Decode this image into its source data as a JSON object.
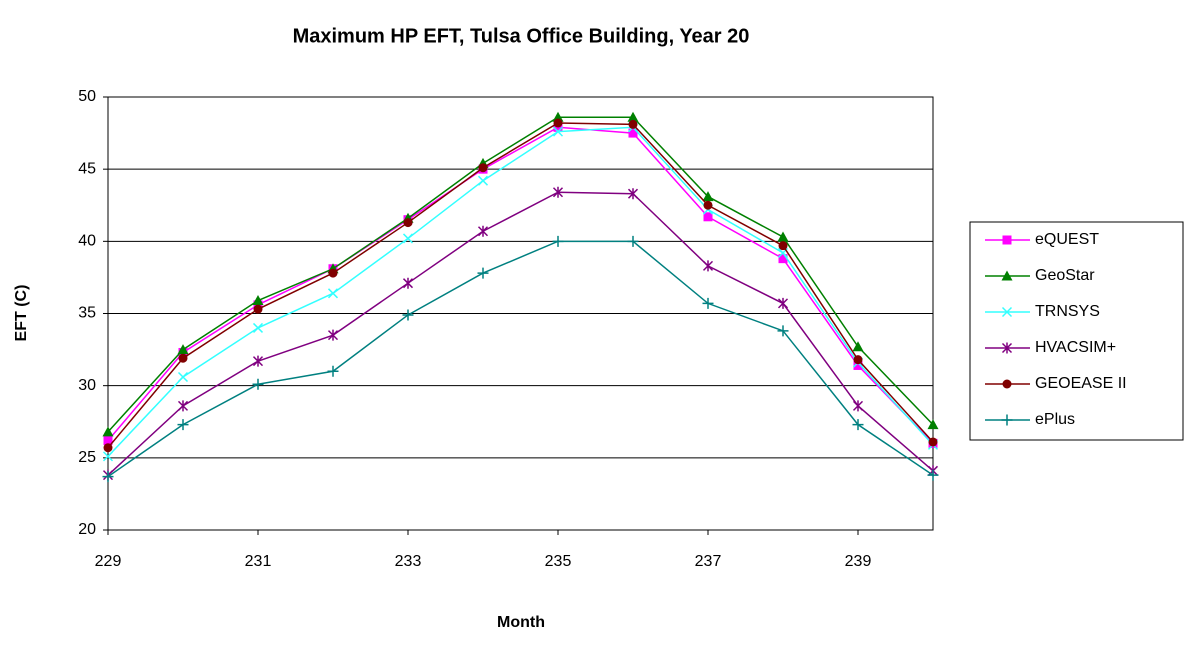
{
  "chart_data": {
    "type": "line",
    "title": "Maximum HP EFT, Tulsa Office Building, Year 20",
    "x_label": "Month",
    "y_label": "EFT (C)",
    "x": [
      229,
      230,
      231,
      232,
      233,
      234,
      235,
      236,
      237,
      238,
      239,
      240
    ],
    "xlim": [
      229,
      240
    ],
    "xticks": [
      229,
      231,
      233,
      235,
      237,
      239
    ],
    "ylim": [
      20,
      50
    ],
    "yticks": [
      20,
      25,
      30,
      35,
      40,
      45,
      50
    ],
    "grid": true,
    "legend": "right",
    "series": [
      {
        "name": "eQUEST",
        "color": "#ff00ff",
        "marker": "square",
        "values": [
          26.2,
          32.3,
          35.6,
          38.1,
          41.5,
          45.0,
          47.9,
          47.5,
          41.7,
          38.8,
          31.4,
          26.0
        ]
      },
      {
        "name": "GeoStar",
        "color": "#008000",
        "marker": "triangle",
        "values": [
          26.8,
          32.5,
          35.9,
          38.1,
          41.6,
          45.4,
          48.6,
          48.6,
          43.1,
          40.3,
          32.7,
          27.3
        ]
      },
      {
        "name": "TRNSYS",
        "color": "#33ffff",
        "marker": "x",
        "values": [
          25.1,
          30.6,
          34.0,
          36.4,
          40.2,
          44.2,
          47.6,
          47.9,
          42.2,
          39.2,
          31.6,
          25.9
        ]
      },
      {
        "name": "HVACSIM+",
        "color": "#800080",
        "marker": "star",
        "values": [
          23.8,
          28.6,
          31.7,
          33.5,
          37.1,
          40.7,
          43.4,
          43.3,
          38.3,
          35.7,
          28.6,
          24.1
        ]
      },
      {
        "name": "GEOEASE II",
        "color": "#800000",
        "marker": "circle",
        "values": [
          25.7,
          31.9,
          35.3,
          37.8,
          41.3,
          45.1,
          48.2,
          48.1,
          42.5,
          39.7,
          31.8,
          26.1
        ]
      },
      {
        "name": "ePlus",
        "color": "#008080",
        "marker": "plus",
        "values": [
          23.7,
          27.3,
          30.1,
          31.0,
          34.9,
          37.8,
          40.0,
          40.0,
          35.7,
          33.8,
          27.3,
          23.8
        ]
      }
    ]
  }
}
